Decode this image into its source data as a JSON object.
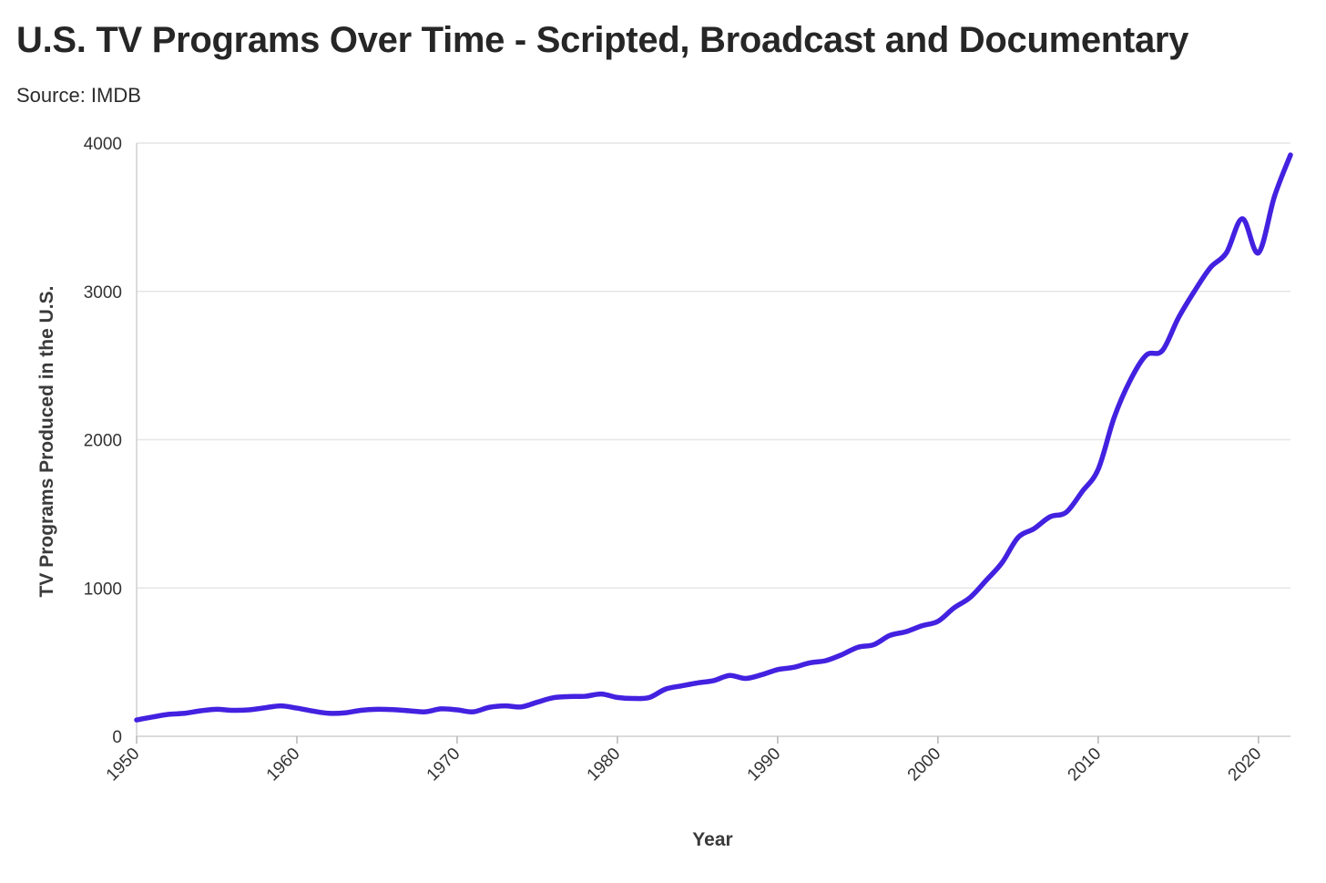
{
  "title": "U.S. TV Programs Over Time - Scripted, Broadcast and Documentary",
  "subtitle": "Source: IMDB",
  "colors": {
    "line": "#4321e0",
    "grid": "#e6e6e6",
    "axis": "#cfcfcf",
    "text": "#333333"
  },
  "chart_data": {
    "type": "line",
    "title": "U.S. TV Programs Over Time - Scripted, Broadcast and Documentary",
    "subtitle": "Source: IMDB",
    "xlabel": "Year",
    "ylabel": "TV Programs Produced in the U.S.",
    "xlim": [
      1950,
      2022
    ],
    "ylim": [
      0,
      4000
    ],
    "xticks": [
      1950,
      1960,
      1970,
      1980,
      1990,
      2000,
      2010,
      2020
    ],
    "yticks": [
      0,
      1000,
      2000,
      3000,
      4000
    ],
    "grid": true,
    "legend": "none",
    "x": [
      1950,
      1951,
      1952,
      1953,
      1954,
      1955,
      1956,
      1957,
      1958,
      1959,
      1960,
      1961,
      1962,
      1963,
      1964,
      1965,
      1966,
      1967,
      1968,
      1969,
      1970,
      1971,
      1972,
      1973,
      1974,
      1975,
      1976,
      1977,
      1978,
      1979,
      1980,
      1981,
      1982,
      1983,
      1984,
      1985,
      1986,
      1987,
      1988,
      1989,
      1990,
      1991,
      1992,
      1993,
      1994,
      1995,
      1996,
      1997,
      1998,
      1999,
      2000,
      2001,
      2002,
      2003,
      2004,
      2005,
      2006,
      2007,
      2008,
      2009,
      2010,
      2011,
      2012,
      2013,
      2014,
      2015,
      2016,
      2017,
      2018,
      2019,
      2020,
      2021,
      2022
    ],
    "series": [
      {
        "values": [
          110,
          130,
          148,
          155,
          172,
          182,
          175,
          178,
          192,
          205,
          190,
          170,
          155,
          158,
          175,
          182,
          180,
          172,
          165,
          185,
          178,
          165,
          195,
          205,
          198,
          230,
          260,
          268,
          270,
          285,
          262,
          255,
          262,
          318,
          340,
          360,
          375,
          410,
          390,
          415,
          450,
          465,
          495,
          510,
          550,
          600,
          618,
          680,
          705,
          745,
          775,
          865,
          935,
          1050,
          1170,
          1340,
          1400,
          1480,
          1510,
          1650,
          1800,
          2150,
          2400,
          2570,
          2600,
          2820,
          3000,
          3160,
          3260,
          3490,
          3260,
          3640,
          3920
        ]
      }
    ]
  }
}
